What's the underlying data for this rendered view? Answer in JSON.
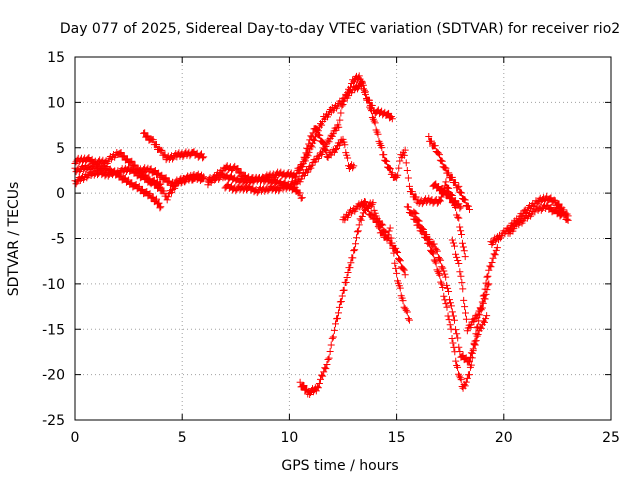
{
  "chart_data": {
    "type": "scatter",
    "title": "Day 077 of 2025, Sidereal Day-to-day VTEC variation (SDTVAR) for receiver rio2",
    "xlabel": "GPS time / hours",
    "ylabel": "SDTVAR / TECUs",
    "xlim": [
      0,
      25
    ],
    "ylim": [
      -25,
      15
    ],
    "xticks": [
      0,
      5,
      10,
      15,
      20,
      25
    ],
    "yticks": [
      -25,
      -20,
      -15,
      -10,
      -5,
      0,
      5,
      10,
      15
    ],
    "grid": true,
    "marker": "plus",
    "color": "#ff0000",
    "series": [
      {
        "values": [
          [
            0,
            3.5
          ],
          [
            0.5,
            3.8
          ],
          [
            1,
            3.4
          ],
          [
            1.5,
            3.5
          ],
          [
            2,
            4.5
          ],
          [
            2.5,
            3.6
          ],
          [
            3,
            2.5
          ],
          [
            3.5,
            1.4
          ],
          [
            4,
            0.5
          ],
          [
            4.3,
            -0.5
          ],
          [
            4.8,
            1.3
          ],
          [
            5.5,
            1.7
          ],
          [
            6,
            1.6
          ]
        ]
      },
      {
        "values": [
          [
            0,
            2.5
          ],
          [
            0.5,
            2.8
          ],
          [
            1,
            2.9
          ],
          [
            1.5,
            2.7
          ],
          [
            2,
            2.0
          ],
          [
            2.5,
            1.2
          ],
          [
            3,
            0.5
          ],
          [
            3.5,
            -0.3
          ],
          [
            3.8,
            -0.9
          ],
          [
            4,
            -1.5
          ]
        ]
      },
      {
        "values": [
          [
            0,
            1.2
          ],
          [
            0.5,
            1.9
          ],
          [
            1,
            2.3
          ],
          [
            1.5,
            2.1
          ],
          [
            2,
            2.3
          ],
          [
            2.5,
            2.7
          ],
          [
            3,
            2.0
          ],
          [
            3.5,
            1.3
          ],
          [
            4,
            1.0
          ]
        ]
      },
      {
        "values": [
          [
            3.2,
            6.5
          ],
          [
            3.6,
            5.8
          ],
          [
            4,
            4.6
          ],
          [
            4.3,
            3.8
          ],
          [
            4.8,
            4.2
          ],
          [
            5.5,
            4.4
          ],
          [
            6,
            4.0
          ]
        ]
      },
      {
        "values": [
          [
            3,
            2.5
          ],
          [
            3.5,
            2.6
          ],
          [
            4,
            1.9
          ],
          [
            4.5,
            1.0
          ],
          [
            5,
            1.4
          ],
          [
            5.5,
            1.9
          ],
          [
            6,
            1.8
          ]
        ]
      },
      {
        "values": [
          [
            6.2,
            1.0
          ],
          [
            7,
            2.8
          ],
          [
            7.5,
            2.7
          ],
          [
            8,
            1.6
          ],
          [
            8.5,
            1.4
          ],
          [
            9,
            1.8
          ],
          [
            9.5,
            2.1
          ],
          [
            10,
            2.0
          ],
          [
            10.3,
            1.9
          ],
          [
            10.6,
            3.0
          ],
          [
            10.9,
            5.5
          ],
          [
            11.2,
            7.2
          ],
          [
            11.5,
            5.8
          ],
          [
            11.8,
            4.0
          ],
          [
            12.2,
            5.0
          ],
          [
            12.5,
            6.0
          ],
          [
            12.8,
            2.8
          ],
          [
            13,
            3.0
          ]
        ]
      },
      {
        "values": [
          [
            6.2,
            1.5
          ],
          [
            7,
            1.9
          ],
          [
            7.5,
            1.5
          ],
          [
            8,
            1.3
          ],
          [
            8.5,
            1.6
          ],
          [
            9,
            1.4
          ],
          [
            9.5,
            1.2
          ],
          [
            10,
            0.8
          ],
          [
            10.4,
            0.2
          ],
          [
            10.6,
            -0.5
          ]
        ]
      },
      {
        "values": [
          [
            7,
            0.8
          ],
          [
            7.5,
            0.5
          ],
          [
            8,
            0.6
          ],
          [
            8.5,
            0.3
          ],
          [
            9,
            0.5
          ],
          [
            9.5,
            0.5
          ],
          [
            10,
            0.8
          ],
          [
            10.5,
            1.5
          ],
          [
            11,
            3.0
          ],
          [
            11.5,
            4.5
          ],
          [
            12,
            6.5
          ],
          [
            12.3,
            7.5
          ],
          [
            12.5,
            10.0
          ],
          [
            12.8,
            11.5
          ],
          [
            13,
            12.5
          ],
          [
            13.3,
            12.8
          ],
          [
            13.6,
            10.5
          ],
          [
            14,
            9.0
          ],
          [
            14.5,
            8.8
          ],
          [
            14.8,
            8.2
          ]
        ]
      },
      {
        "values": [
          [
            10.4,
            2.5
          ],
          [
            10.7,
            3.5
          ],
          [
            11,
            5.0
          ],
          [
            11.3,
            6.8
          ],
          [
            11.6,
            8.2
          ],
          [
            12,
            9.2
          ],
          [
            12.5,
            10.2
          ],
          [
            13,
            11.5
          ],
          [
            13.4,
            12.0
          ],
          [
            13.7,
            10.0
          ],
          [
            14,
            7.5
          ],
          [
            14.4,
            4.0
          ],
          [
            14.8,
            2.0
          ],
          [
            15,
            1.5
          ],
          [
            15.2,
            4.0
          ],
          [
            15.4,
            4.5
          ],
          [
            15.6,
            0.5
          ],
          [
            16,
            -1.0
          ],
          [
            16.5,
            -0.8
          ],
          [
            17,
            -1.0
          ],
          [
            17.3,
            1.0
          ],
          [
            17.6,
            -0.5
          ],
          [
            17.9,
            -3.0
          ],
          [
            18.2,
            -7.0
          ]
        ]
      },
      {
        "values": [
          [
            10.5,
            -21.0
          ],
          [
            10.9,
            -22.0
          ],
          [
            11.3,
            -21.5
          ],
          [
            11.8,
            -18.5
          ],
          [
            12.2,
            -14.0
          ],
          [
            12.6,
            -10.0
          ],
          [
            13,
            -6.5
          ],
          [
            13.3,
            -3.0
          ],
          [
            13.6,
            -1.5
          ],
          [
            13.9,
            -1.2
          ],
          [
            14.2,
            -4.0
          ],
          [
            14.5,
            -5.0
          ],
          [
            14.7,
            -4.0
          ],
          [
            15,
            -9.0
          ],
          [
            15.3,
            -12.0
          ],
          [
            15.6,
            -14.0
          ]
        ]
      },
      {
        "values": [
          [
            12.5,
            -3.0
          ],
          [
            12.8,
            -2.2
          ],
          [
            13.2,
            -1.5
          ],
          [
            13.5,
            -1.0
          ],
          [
            13.8,
            -2.5
          ],
          [
            14.3,
            -3.5
          ],
          [
            14.6,
            -5.0
          ],
          [
            15,
            -6.5
          ],
          [
            15.4,
            -9.0
          ]
        ]
      },
      {
        "values": [
          [
            15.5,
            -1.5
          ],
          [
            16,
            -3.5
          ],
          [
            16.5,
            -5.5
          ],
          [
            16.8,
            -7.5
          ],
          [
            17.1,
            -10.0
          ],
          [
            17.5,
            -14.5
          ],
          [
            17.8,
            -19.0
          ],
          [
            18.1,
            -21.5
          ],
          [
            18.4,
            -20.0
          ],
          [
            18.7,
            -15.5
          ],
          [
            19,
            -12.0
          ],
          [
            19.3,
            -8.5
          ],
          [
            19.7,
            -6.0
          ]
        ]
      },
      {
        "values": [
          [
            15.8,
            -2.0
          ],
          [
            16.3,
            -4.5
          ],
          [
            16.8,
            -6.0
          ],
          [
            17.2,
            -8.5
          ],
          [
            17.6,
            -13.0
          ],
          [
            18,
            -18.0
          ],
          [
            18.4,
            -18.5
          ],
          [
            18.8,
            -15.5
          ],
          [
            19.2,
            -13.5
          ]
        ]
      },
      {
        "values": [
          [
            17.6,
            -5.0
          ],
          [
            18,
            -9.0
          ],
          [
            18.3,
            -15.0
          ],
          [
            18.6,
            -14.0
          ],
          [
            19,
            -12.5
          ],
          [
            19.3,
            -10.0
          ]
        ]
      },
      {
        "values": [
          [
            16.7,
            1.0
          ],
          [
            17,
            0.5
          ],
          [
            17.3,
            0.0
          ],
          [
            17.6,
            -0.8
          ],
          [
            18,
            -1.5
          ]
        ]
      },
      {
        "values": [
          [
            16.5,
            6.0
          ],
          [
            16.8,
            5.0
          ],
          [
            17,
            4.0
          ],
          [
            17.3,
            2.5
          ],
          [
            17.6,
            1.5
          ],
          [
            17.9,
            0.5
          ],
          [
            18.2,
            -1.0
          ],
          [
            18.4,
            -1.8
          ]
        ]
      },
      {
        "values": [
          [
            19.4,
            -5.5
          ],
          [
            19.8,
            -4.8
          ],
          [
            20.2,
            -4.0
          ],
          [
            20.6,
            -3.0
          ],
          [
            21,
            -2.0
          ],
          [
            21.5,
            -1.0
          ],
          [
            22,
            -0.5
          ],
          [
            22.4,
            -1.0
          ],
          [
            22.8,
            -2.0
          ],
          [
            23,
            -2.5
          ]
        ]
      },
      {
        "values": [
          [
            20.2,
            -4.5
          ],
          [
            20.6,
            -3.5
          ],
          [
            21,
            -2.8
          ],
          [
            21.5,
            -1.8
          ],
          [
            22,
            -1.5
          ],
          [
            22.4,
            -2.0
          ],
          [
            22.8,
            -2.5
          ],
          [
            23,
            -3.0
          ]
        ]
      }
    ]
  }
}
